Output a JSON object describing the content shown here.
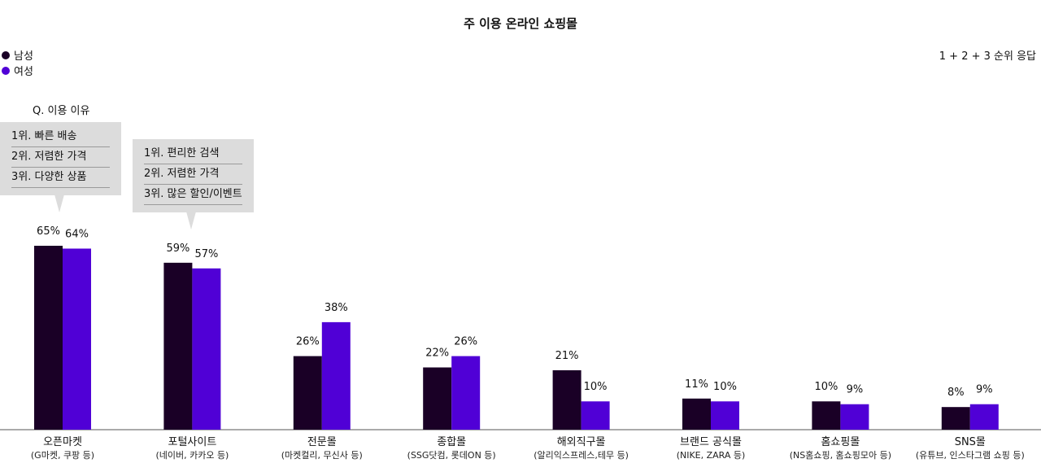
{
  "chart_data": {
    "type": "bar",
    "title": "주 이용 온라인 쇼핑몰",
    "note": "1 + 2 + 3 순위 응답",
    "categories": [
      {
        "name": "오픈마켓",
        "sub": "(G마켓, 쿠팡 등)"
      },
      {
        "name": "포털사이트",
        "sub": "(네이버, 카카오 등)"
      },
      {
        "name": "전문몰",
        "sub": "(마켓컬리, 무신사 등)"
      },
      {
        "name": "종합몰",
        "sub": "(SSG닷컴, 롯데ON 등)"
      },
      {
        "name": "해외직구몰",
        "sub": "(알리익스프레스,테무 등)"
      },
      {
        "name": "브랜드 공식몰",
        "sub": "(NIKE, ZARA 등)"
      },
      {
        "name": "홈쇼핑몰",
        "sub": "(NS홈쇼핑, 홈쇼핑모아 등)"
      },
      {
        "name": "SNS몰",
        "sub": "(유튜브, 인스타그램 쇼핑 등)"
      }
    ],
    "series": [
      {
        "name": "남성",
        "color": "#1a0026",
        "values": [
          65,
          59,
          26,
          22,
          21,
          11,
          10,
          8
        ]
      },
      {
        "name": "여성",
        "color": "#5000d6",
        "values": [
          64,
          57,
          38,
          26,
          10,
          10,
          9,
          9
        ]
      }
    ],
    "value_suffix": "%",
    "ylim": [
      0,
      65
    ]
  },
  "reasons": {
    "title": "Q. 이용 이유",
    "open_market": [
      "1위. 빠른 배송",
      "2위. 저렴한 가격",
      "3위. 다양한 상품"
    ],
    "portal": [
      "1위. 편리한 검색",
      "2위. 저렴한 가격",
      "3위. 많은 할인/이벤트"
    ]
  }
}
